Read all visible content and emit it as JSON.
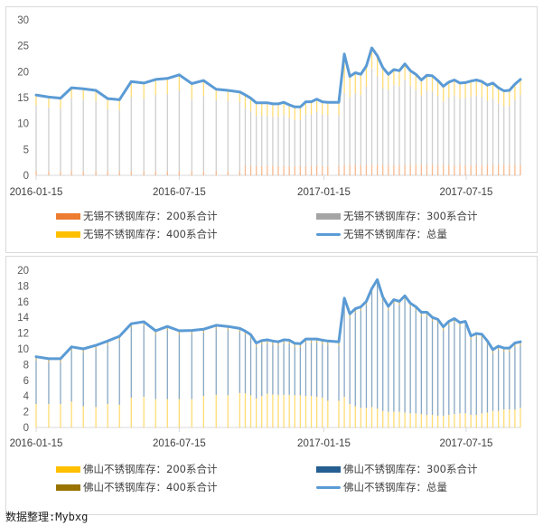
{
  "dates": [
    "2016-01-15",
    "2016-01-31",
    "2016-02-15",
    "2016-02-29",
    "2016-03-15",
    "2016-03-31",
    "2016-04-15",
    "2016-04-30",
    "2016-05-15",
    "2016-05-31",
    "2016-06-15",
    "2016-06-30",
    "2016-07-15",
    "2016-07-31",
    "2016-08-15",
    "2016-08-31",
    "2016-09-15",
    "2016-09-30",
    "2016-10-07",
    "2016-10-14",
    "2016-10-21",
    "2016-10-28",
    "2016-11-04",
    "2016-11-11",
    "2016-11-18",
    "2016-11-25",
    "2016-12-02",
    "2016-12-09",
    "2016-12-16",
    "2016-12-23",
    "2016-12-30",
    "2017-01-06",
    "2017-01-13",
    "2017-01-20",
    "2017-02-03",
    "2017-02-10",
    "2017-02-17",
    "2017-02-24",
    "2017-03-03",
    "2017-03-10",
    "2017-03-17",
    "2017-03-24",
    "2017-03-31",
    "2017-04-07",
    "2017-04-14",
    "2017-04-21",
    "2017-04-28",
    "2017-05-05",
    "2017-05-12",
    "2017-05-19",
    "2017-05-26",
    "2017-06-02",
    "2017-06-09",
    "2017-06-16",
    "2017-06-23",
    "2017-06-30",
    "2017-07-07",
    "2017-07-14",
    "2017-07-21",
    "2017-07-28",
    "2017-08-04",
    "2017-08-11",
    "2017-08-18",
    "2017-08-25",
    "2017-09-01",
    "2017-09-08",
    "2017-09-15",
    "2017-09-22"
  ],
  "chart_data": [
    {
      "type": "bar",
      "stacked": true,
      "x_type": "date",
      "xlim": [
        "2016-01-15",
        "2017-09-22"
      ],
      "x_ticks": [
        "2016-01-15",
        "2016-07-15",
        "2017-01-15",
        "2017-07-15"
      ],
      "ylim": [
        0,
        30
      ],
      "y_ticks": [
        0,
        5,
        10,
        15,
        20,
        25,
        30
      ],
      "grid": false,
      "legend_placement": "bottom",
      "series": [
        {
          "name": "无锡不锈钢库存：200系合计",
          "kind": "bar",
          "color": "#ED7D31",
          "values": [
            0.8,
            0.8,
            0.8,
            0.8,
            0.8,
            0.8,
            0.8,
            0.8,
            0.8,
            0.8,
            0.8,
            0.8,
            0.8,
            0.8,
            0.8,
            0.8,
            0.8,
            0.8,
            1.8,
            1.8,
            1.8,
            1.8,
            1.8,
            1.8,
            1.8,
            1.8,
            1.8,
            1.8,
            1.8,
            1.8,
            1.8,
            1.8,
            1.8,
            1.8,
            1.8,
            2.0,
            2.0,
            2.0,
            2.0,
            2.0,
            2.0,
            2.0,
            2.0,
            2.0,
            2.0,
            2.0,
            2.0,
            2.0,
            2.0,
            2.0,
            2.0,
            2.0,
            2.0,
            2.0,
            2.0,
            2.0,
            2.0,
            2.0,
            2.0,
            2.0,
            2.0,
            2.0,
            2.0,
            2.0,
            2.0,
            2.0,
            2.0,
            2.0
          ]
        },
        {
          "name": "无锡不锈钢库存：300系合计",
          "kind": "bar",
          "color": "#A5A5A5",
          "values": [
            12.7,
            12.3,
            12.1,
            14.1,
            13.9,
            13.6,
            12.0,
            11.8,
            14.3,
            14.0,
            14.7,
            14.9,
            15.6,
            13.9,
            14.5,
            13.8,
            13.6,
            13.3,
            11.2,
            10.6,
            9.7,
            9.7,
            9.7,
            9.5,
            9.5,
            9.8,
            9.3,
            8.9,
            8.9,
            9.9,
            9.9,
            10.4,
            9.9,
            9.8,
            9.8,
            13.9,
            13.1,
            13.8,
            13.5,
            15.1,
            18.6,
            17.1,
            14.8,
            14.5,
            15.4,
            15.2,
            16.5,
            15.2,
            14.5,
            13.4,
            14.3,
            14.2,
            13.3,
            12.2,
            13.0,
            13.4,
            12.8,
            12.9,
            13.2,
            13.4,
            13.1,
            12.4,
            12.8,
            11.9,
            11.3,
            11.4,
            12.6,
            13.5
          ]
        },
        {
          "name": "无锡不锈钢库存：400系合计",
          "kind": "bar",
          "color": "#FFC000",
          "values": [
            2.0,
            2.0,
            2.0,
            2.0,
            2.0,
            2.0,
            2.0,
            2.0,
            3.0,
            3.0,
            3.0,
            3.0,
            3.0,
            3.0,
            3.0,
            2.0,
            2.0,
            2.0,
            2.5,
            2.5,
            2.5,
            2.5,
            2.5,
            2.5,
            2.5,
            2.5,
            2.5,
            2.5,
            2.5,
            2.5,
            2.5,
            2.5,
            2.5,
            2.5,
            2.5,
            7.5,
            4.0,
            4.0,
            4.0,
            4.0,
            4.0,
            4.0,
            4.0,
            3.0,
            3.0,
            3.0,
            3.0,
            3.0,
            3.0,
            3.0,
            3.0,
            3.0,
            3.0,
            3.0,
            3.0,
            3.0,
            3.0,
            3.0,
            3.0,
            3.0,
            3.0,
            3.0,
            3.0,
            3.0,
            3.0,
            3.0,
            3.0,
            3.0
          ]
        },
        {
          "name": "无锡不锈钢库存：总量",
          "kind": "line",
          "color": "#5B9BD5",
          "values": [
            15.5,
            15.1,
            14.9,
            16.9,
            16.7,
            16.4,
            14.8,
            14.6,
            18.1,
            17.8,
            18.5,
            18.7,
            19.4,
            17.7,
            18.3,
            16.6,
            16.4,
            16.1,
            15.5,
            14.9,
            14.0,
            14.0,
            14.0,
            13.8,
            13.8,
            14.1,
            13.6,
            13.2,
            13.2,
            14.2,
            14.2,
            14.7,
            14.2,
            14.1,
            14.1,
            23.4,
            19.1,
            19.8,
            19.5,
            21.1,
            24.6,
            23.1,
            20.8,
            19.5,
            20.4,
            20.2,
            21.5,
            20.2,
            19.5,
            18.4,
            19.3,
            19.2,
            18.3,
            17.2,
            18.0,
            18.4,
            17.8,
            17.9,
            18.2,
            18.4,
            18.1,
            17.4,
            17.8,
            16.9,
            16.3,
            16.4,
            17.6,
            18.5
          ]
        }
      ]
    },
    {
      "type": "bar",
      "stacked": true,
      "x_type": "date",
      "xlim": [
        "2016-01-15",
        "2017-09-22"
      ],
      "x_ticks": [
        "2016-01-15",
        "2016-07-15",
        "2017-01-15",
        "2017-07-15"
      ],
      "ylim": [
        0,
        20
      ],
      "y_ticks": [
        0,
        2,
        4,
        6,
        8,
        10,
        12,
        14,
        16,
        18,
        20
      ],
      "grid": false,
      "legend_placement": "bottom",
      "series": [
        {
          "name": "佛山不锈钢库存：200系合计",
          "kind": "bar",
          "color": "#FFC000",
          "values": [
            3.0,
            3.0,
            3.0,
            3.3,
            2.7,
            2.6,
            3.0,
            2.9,
            3.8,
            3.9,
            3.6,
            3.6,
            3.6,
            3.6,
            4.0,
            4.15,
            4.1,
            4.4,
            4.35,
            4.1,
            3.7,
            4.0,
            4.3,
            4.2,
            4.15,
            4.15,
            4.15,
            4.1,
            4.1,
            4.0,
            4.0,
            3.9,
            3.8,
            3.4,
            3.4,
            3.9,
            3.0,
            2.7,
            2.5,
            2.5,
            2.6,
            2.4,
            2.1,
            2.0,
            2.0,
            2.0,
            1.9,
            1.8,
            1.8,
            1.7,
            1.6,
            1.6,
            1.5,
            1.5,
            1.6,
            1.7,
            1.8,
            1.8,
            1.6,
            1.6,
            1.8,
            1.9,
            2.1,
            2.1,
            2.3,
            2.3,
            2.3,
            2.5
          ]
        },
        {
          "name": "佛山不锈钢库存：300系合计",
          "kind": "bar",
          "color": "#255E91",
          "values": [
            5.5,
            5.25,
            5.25,
            6.45,
            6.8,
            7.35,
            7.5,
            8.2,
            8.9,
            9.05,
            8.2,
            8.75,
            8.2,
            8.25,
            8.0,
            8.35,
            8.25,
            7.7,
            7.4,
            7.2,
            6.55,
            6.55,
            6.35,
            6.3,
            6.25,
            6.5,
            6.45,
            6.1,
            6.05,
            6.75,
            6.75,
            6.85,
            6.8,
            7.1,
            7.0,
            12.05,
            10.95,
            11.9,
            12.35,
            13.05,
            14.55,
            15.9,
            14.0,
            12.9,
            13.75,
            13.55,
            14.35,
            13.5,
            13.05,
            12.45,
            12.55,
            11.9,
            11.75,
            10.8,
            11.4,
            11.65,
            11.05,
            11.2,
            9.55,
            9.85,
            9.55,
            8.6,
            7.3,
            7.75,
            7.3,
            7.3,
            7.95,
            7.9
          ]
        },
        {
          "name": "佛山不锈钢库存：400系合计",
          "kind": "bar",
          "color": "#997300",
          "values": [
            0.5,
            0.5,
            0.5,
            0.5,
            0.5,
            0.5,
            0.5,
            0.5,
            0.5,
            0.5,
            0.5,
            0.5,
            0.5,
            0.5,
            0.5,
            0.5,
            0.5,
            0.5,
            0.5,
            0.5,
            0.5,
            0.5,
            0.5,
            0.5,
            0.5,
            0.5,
            0.5,
            0.5,
            0.5,
            0.5,
            0.5,
            0.5,
            0.5,
            0.5,
            0.5,
            0.5,
            0.5,
            0.5,
            0.5,
            0.5,
            0.5,
            0.5,
            0.5,
            0.5,
            0.5,
            0.5,
            0.5,
            0.5,
            0.5,
            0.5,
            0.5,
            0.5,
            0.5,
            0.5,
            0.5,
            0.5,
            0.5,
            0.5,
            0.5,
            0.5,
            0.5,
            0.5,
            0.5,
            0.5,
            0.5,
            0.5,
            0.5,
            0.5
          ]
        },
        {
          "name": "佛山不锈钢库存：总量",
          "kind": "line",
          "color": "#5B9BD5",
          "values": [
            9.0,
            8.75,
            8.75,
            10.25,
            10.0,
            10.45,
            11.0,
            11.6,
            13.2,
            13.45,
            12.3,
            12.85,
            12.3,
            12.35,
            12.5,
            13.0,
            12.85,
            12.6,
            12.25,
            11.8,
            10.75,
            11.05,
            11.15,
            11.0,
            10.9,
            11.15,
            11.1,
            10.7,
            10.65,
            11.25,
            11.25,
            11.25,
            11.1,
            11.0,
            10.9,
            16.45,
            14.45,
            15.1,
            15.35,
            16.05,
            17.65,
            18.8,
            16.6,
            15.4,
            16.25,
            16.05,
            16.75,
            15.8,
            15.35,
            14.65,
            14.65,
            14.0,
            13.75,
            12.8,
            13.5,
            13.85,
            13.35,
            13.5,
            11.65,
            11.95,
            11.85,
            11.0,
            9.9,
            10.35,
            10.1,
            10.1,
            10.75,
            10.9
          ]
        }
      ]
    }
  ],
  "footer": "数据整理:Mybxg"
}
